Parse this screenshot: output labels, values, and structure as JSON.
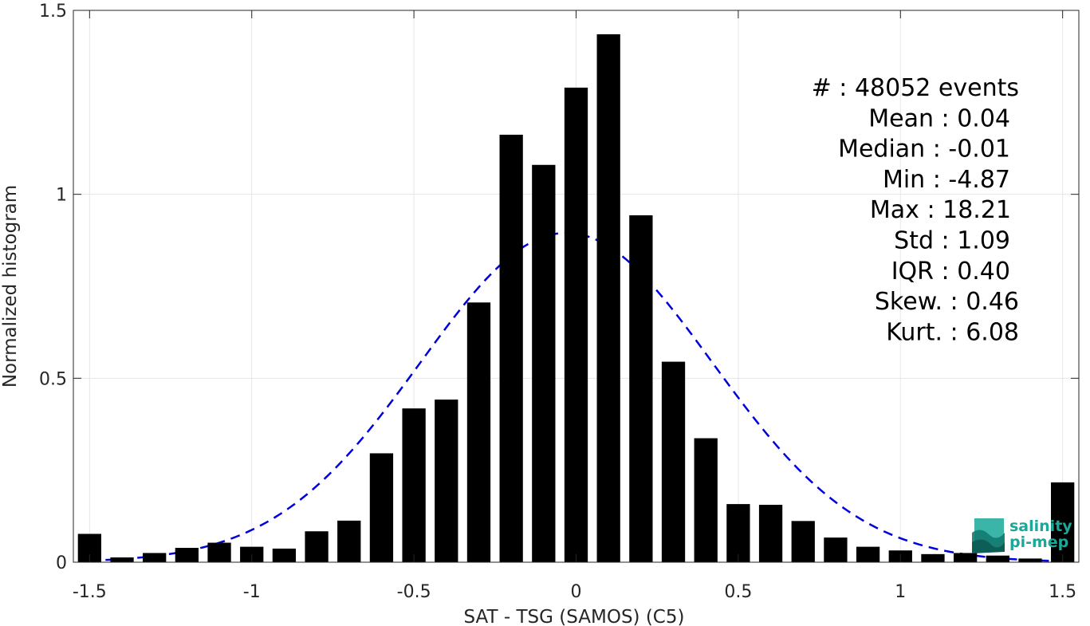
{
  "chart_data": {
    "type": "bar",
    "xlabel": "SAT - TSG (SAMOS) (C5)",
    "ylabel": "Normalized histogram",
    "xlim": [
      -1.55,
      1.55
    ],
    "ylim": [
      0,
      1.5
    ],
    "xticks": [
      -1.5,
      -1,
      -0.5,
      0,
      0.5,
      1,
      1.5
    ],
    "xtick_labels": [
      "-1.5",
      "-1",
      "-0.5",
      "0",
      "0.5",
      "1",
      "1.5"
    ],
    "yticks": [
      0,
      0.5,
      1,
      1.5
    ],
    "ytick_labels": [
      "0",
      "0.5",
      "1",
      "1.5"
    ],
    "grid": true,
    "bin_centers": [
      -1.5,
      -1.4,
      -1.3,
      -1.2,
      -1.1,
      -1.0,
      -0.9,
      -0.8,
      -0.7,
      -0.6,
      -0.5,
      -0.4,
      -0.3,
      -0.2,
      -0.1,
      0.0,
      0.1,
      0.2,
      0.3,
      0.4,
      0.5,
      0.6,
      0.7,
      0.8,
      0.9,
      1.0,
      1.1,
      1.2,
      1.3,
      1.4,
      1.5
    ],
    "values": [
      0.077,
      0.013,
      0.025,
      0.039,
      0.053,
      0.042,
      0.037,
      0.084,
      0.113,
      0.296,
      0.418,
      0.442,
      0.706,
      1.162,
      1.08,
      1.29,
      1.435,
      0.943,
      0.545,
      0.337,
      0.158,
      0.156,
      0.112,
      0.067,
      0.042,
      0.032,
      0.022,
      0.025,
      0.018,
      0.01,
      0.217
    ],
    "bar_color": "#000000",
    "fit_curve": {
      "style": "dashed",
      "color": "#0000dd",
      "mean": -0.03,
      "std": 0.45,
      "peak": 0.895
    },
    "stats": [
      {
        "label": "#  : 48052 events"
      },
      {
        "label": "Mean : 0.04"
      },
      {
        "label": "Median : -0.01"
      },
      {
        "label": "Min : -4.87"
      },
      {
        "label": "Max : 18.21"
      },
      {
        "label": "Std : 1.09"
      },
      {
        "label": "IQR : 0.40"
      },
      {
        "label": "Skew. : 0.46"
      },
      {
        "label": "Kurt. : 6.08"
      }
    ]
  },
  "logo": {
    "line1": "salinity",
    "line2": "pi-mep",
    "color": "#1aa89a"
  }
}
